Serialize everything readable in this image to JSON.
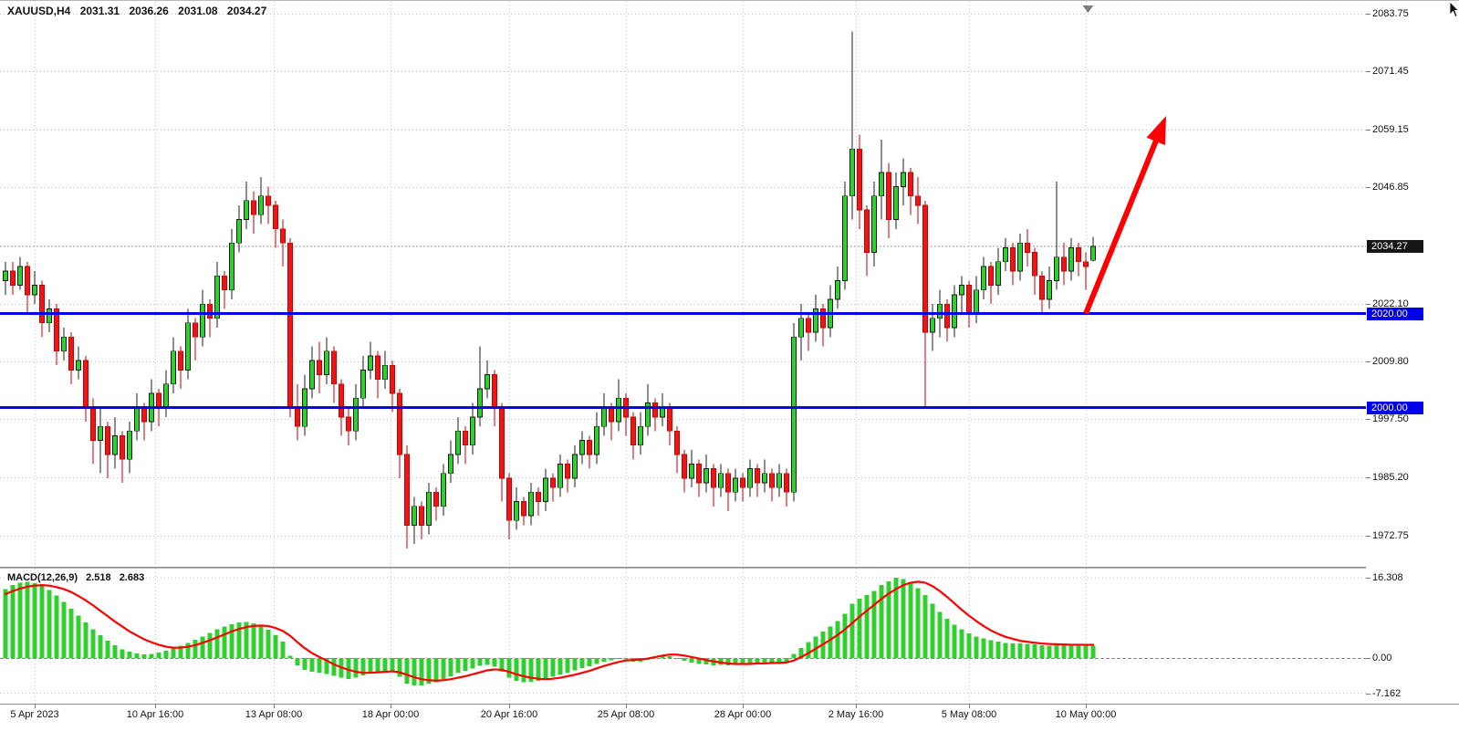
{
  "header": {
    "symbol": "XAUUSD,H4",
    "open": "2031.31",
    "high": "2036.26",
    "low": "2031.08",
    "close": "2034.27"
  },
  "chart_data": {
    "type": "candlestick",
    "symbol": "XAUUSD",
    "timeframe": "H4",
    "title": "XAUUSD,H4 gold 4-hour chart with MACD and support lines",
    "price_axis": {
      "ylim": [
        1972.75,
        2083.75
      ],
      "current_price": 2034.27,
      "current_label": "2034.27",
      "grid_extra": [
        2034.55
      ],
      "labels": [
        {
          "text": "2083.75",
          "price": 2083.75
        },
        {
          "text": "2071.45",
          "price": 2071.45
        },
        {
          "text": "2059.15",
          "price": 2059.15
        },
        {
          "text": "2046.85",
          "price": 2046.85
        },
        {
          "text": "2022.10",
          "price": 2022.1
        },
        {
          "text": "2009.80",
          "price": 2009.8
        },
        {
          "text": "1997.50",
          "price": 1997.5
        },
        {
          "text": "1985.20",
          "price": 1985.2
        },
        {
          "text": "1972.75",
          "price": 1972.75
        }
      ]
    },
    "time_axis": {
      "labels": [
        {
          "text": "5 Apr 2023",
          "index": 4
        },
        {
          "text": "10 Apr 16:00",
          "index": 20.5
        },
        {
          "text": "13 Apr 08:00",
          "index": 36.75
        },
        {
          "text": "18 Apr 00:00",
          "index": 52.75
        },
        {
          "text": "20 Apr 16:00",
          "index": 69
        },
        {
          "text": "25 Apr 08:00",
          "index": 85
        },
        {
          "text": "28 Apr 00:00",
          "index": 101
        },
        {
          "text": "2 May 16:00",
          "index": 116.5
        },
        {
          "text": "5 May 08:00",
          "index": 132
        },
        {
          "text": "10 May 00:00",
          "index": 148
        }
      ]
    },
    "hlines": [
      {
        "price": 2020.0,
        "label": "2020.00",
        "color": "#0000E8"
      },
      {
        "price": 2000.0,
        "label": "2000.00",
        "color": "#0000E8"
      }
    ],
    "arrow": {
      "from": {
        "index": 148,
        "price": 2020
      },
      "to": {
        "index": 159,
        "price": 2062
      },
      "color": "#FF0000"
    },
    "shift_marker_index": 148.3,
    "candles": [
      [
        2027,
        2031,
        2024,
        2029
      ],
      [
        2029,
        2031,
        2024,
        2026
      ],
      [
        2026,
        2032,
        2025,
        2030
      ],
      [
        2030,
        2031,
        2020,
        2024
      ],
      [
        2024,
        2029,
        2022,
        2026
      ],
      [
        2026,
        2027,
        2015,
        2018
      ],
      [
        2018,
        2023,
        2016,
        2021
      ],
      [
        2021,
        2022,
        2009,
        2012
      ],
      [
        2012,
        2017,
        2010,
        2015
      ],
      [
        2015,
        2016,
        2005,
        2008
      ],
      [
        2008,
        2013,
        2006,
        2010
      ],
      [
        2010,
        2011,
        1997,
        2000
      ],
      [
        2000,
        2002,
        1988,
        1993
      ],
      [
        1993,
        2000,
        1986,
        1996
      ],
      [
        1996,
        1997,
        1985,
        1990
      ],
      [
        1990,
        1998,
        1987,
        1994
      ],
      [
        1994,
        1995,
        1984,
        1989
      ],
      [
        1989,
        1997,
        1986,
        1995
      ],
      [
        1995,
        2003,
        1993,
        2000
      ],
      [
        2000,
        2001,
        1993,
        1997
      ],
      [
        1997,
        2006,
        1995,
        2003
      ],
      [
        2003,
        2004,
        1996,
        2000
      ],
      [
        2000,
        2008,
        1998,
        2005
      ],
      [
        2005,
        2015,
        2003,
        2012
      ],
      [
        2012,
        2013,
        2004,
        2008
      ],
      [
        2008,
        2021,
        2006,
        2018
      ],
      [
        2018,
        2019,
        2010,
        2015
      ],
      [
        2015,
        2025,
        2013,
        2022
      ],
      [
        2022,
        2023,
        2015,
        2019
      ],
      [
        2019,
        2031,
        2017,
        2028
      ],
      [
        2028,
        2029,
        2021,
        2025
      ],
      [
        2025,
        2038,
        2023,
        2035
      ],
      [
        2035,
        2043,
        2033,
        2040
      ],
      [
        2040,
        2048,
        2038,
        2044
      ],
      [
        2044,
        2046,
        2037,
        2041
      ],
      [
        2041,
        2049,
        2039,
        2045
      ],
      [
        2045,
        2047,
        2039,
        2043
      ],
      [
        2043,
        2044,
        2034,
        2038
      ],
      [
        2038,
        2040,
        2030,
        2035
      ],
      [
        2035,
        2036,
        1998,
        2000
      ],
      [
        2000,
        2005,
        1993,
        1996
      ],
      [
        1996,
        2007,
        1994,
        2004
      ],
      [
        2004,
        2013,
        2002,
        2010
      ],
      [
        2010,
        2014,
        2003,
        2007
      ],
      [
        2007,
        2015,
        2005,
        2012
      ],
      [
        2012,
        2013,
        2001,
        2005
      ],
      [
        2005,
        2006,
        1994,
        1998
      ],
      [
        1998,
        2000,
        1992,
        1995
      ],
      [
        1995,
        2005,
        1993,
        2002
      ],
      [
        2002,
        2011,
        2000,
        2008
      ],
      [
        2008,
        2014,
        2006,
        2011
      ],
      [
        2011,
        2012,
        2002,
        2006
      ],
      [
        2006,
        2012,
        2004,
        2009
      ],
      [
        2009,
        2010,
        1999,
        2003
      ],
      [
        2003,
        2004,
        1985,
        1990
      ],
      [
        1990,
        1992,
        1970,
        1975
      ],
      [
        1975,
        1981,
        1971,
        1979
      ],
      [
        1979,
        1980,
        1972,
        1975
      ],
      [
        1975,
        1984,
        1973,
        1982
      ],
      [
        1982,
        1983,
        1976,
        1979
      ],
      [
        1979,
        1988,
        1977,
        1986
      ],
      [
        1986,
        1993,
        1984,
        1990
      ],
      [
        1990,
        1998,
        1988,
        1995
      ],
      [
        1995,
        1996,
        1988,
        1992
      ],
      [
        1992,
        2001,
        1990,
        1998
      ],
      [
        1998,
        2013,
        1996,
        2004
      ],
      [
        2004,
        2010,
        2002,
        2007
      ],
      [
        2007,
        2008,
        1996,
        2000
      ],
      [
        2000,
        2001,
        1980,
        1985
      ],
      [
        1985,
        1986,
        1972,
        1976
      ],
      [
        1976,
        1983,
        1974,
        1980
      ],
      [
        1980,
        1981,
        1975,
        1977
      ],
      [
        1977,
        1984,
        1975,
        1982
      ],
      [
        1982,
        1983,
        1977,
        1980
      ],
      [
        1980,
        1987,
        1978,
        1985
      ],
      [
        1985,
        1986,
        1980,
        1983
      ],
      [
        1983,
        1990,
        1981,
        1988
      ],
      [
        1988,
        1989,
        1982,
        1985
      ],
      [
        1985,
        1992,
        1983,
        1990
      ],
      [
        1990,
        1995,
        1988,
        1993
      ],
      [
        1993,
        1994,
        1987,
        1990
      ],
      [
        1990,
        1999,
        1988,
        1996
      ],
      [
        1996,
        2003,
        1994,
        2000
      ],
      [
        2000,
        2001,
        1993,
        1997
      ],
      [
        1997,
        2006,
        1995,
        2002
      ],
      [
        2002,
        2003,
        1994,
        1998
      ],
      [
        1998,
        1999,
        1989,
        1992
      ],
      [
        1992,
        1999,
        1990,
        1996
      ],
      [
        1996,
        2005,
        1994,
        2001
      ],
      [
        2001,
        2002,
        1995,
        1998
      ],
      [
        1998,
        2003,
        1996,
        2000
      ],
      [
        2000,
        2001,
        1992,
        1995
      ],
      [
        1995,
        1996,
        1986,
        1990
      ],
      [
        1990,
        1991,
        1982,
        1985
      ],
      [
        1985,
        1991,
        1983,
        1988
      ],
      [
        1988,
        1989,
        1981,
        1984
      ],
      [
        1984,
        1990,
        1982,
        1987
      ],
      [
        1987,
        1988,
        1979,
        1983
      ],
      [
        1983,
        1988,
        1981,
        1986
      ],
      [
        1986,
        1987,
        1978,
        1982
      ],
      [
        1982,
        1987,
        1980,
        1985
      ],
      [
        1985,
        1986,
        1980,
        1983
      ],
      [
        1983,
        1989,
        1981,
        1987
      ],
      [
        1987,
        1988,
        1981,
        1984
      ],
      [
        1984,
        1989,
        1982,
        1986
      ],
      [
        1986,
        1987,
        1980,
        1983
      ],
      [
        1983,
        1988,
        1981,
        1986
      ],
      [
        1986,
        1987,
        1979,
        1982
      ],
      [
        1982,
        2018,
        1980,
        2015
      ],
      [
        2015,
        2022,
        2010,
        2019
      ],
      [
        2019,
        2020,
        2012,
        2016
      ],
      [
        2016,
        2024,
        2014,
        2021
      ],
      [
        2021,
        2022,
        2013,
        2017
      ],
      [
        2017,
        2026,
        2015,
        2023
      ],
      [
        2023,
        2030,
        2021,
        2027
      ],
      [
        2027,
        2048,
        2025,
        2045
      ],
      [
        2045,
        2080,
        2040,
        2055
      ],
      [
        2055,
        2058,
        2038,
        2042
      ],
      [
        2042,
        2043,
        2028,
        2033
      ],
      [
        2033,
        2048,
        2030,
        2045
      ],
      [
        2045,
        2057,
        2040,
        2050
      ],
      [
        2050,
        2052,
        2036,
        2040
      ],
      [
        2040,
        2050,
        2038,
        2047
      ],
      [
        2047,
        2053,
        2043,
        2050
      ],
      [
        2050,
        2051,
        2041,
        2045
      ],
      [
        2045,
        2049,
        2039,
        2043
      ],
      [
        2043,
        2044,
        2000,
        2016
      ],
      [
        2016,
        2022,
        2012,
        2019
      ],
      [
        2019,
        2025,
        2015,
        2022
      ],
      [
        2022,
        2023,
        2014,
        2017
      ],
      [
        2017,
        2026,
        2015,
        2024
      ],
      [
        2024,
        2028,
        2020,
        2026
      ],
      [
        2026,
        2027,
        2017,
        2020
      ],
      [
        2020,
        2028,
        2018,
        2025
      ],
      [
        2025,
        2032,
        2023,
        2030
      ],
      [
        2030,
        2031,
        2022,
        2026
      ],
      [
        2026,
        2034,
        2024,
        2031
      ],
      [
        2031,
        2036,
        2029,
        2034
      ],
      [
        2034,
        2035,
        2026,
        2029
      ],
      [
        2029,
        2037,
        2027,
        2035
      ],
      [
        2035,
        2038,
        2030,
        2033
      ],
      [
        2033,
        2034,
        2024,
        2028
      ],
      [
        2028,
        2029,
        2020,
        2023
      ],
      [
        2023,
        2030,
        2021,
        2027
      ],
      [
        2027,
        2048,
        2025,
        2032
      ],
      [
        2032,
        2035,
        2026,
        2029
      ],
      [
        2029,
        2036,
        2027,
        2034
      ],
      [
        2034,
        2035,
        2028,
        2031
      ],
      [
        2031,
        2033,
        2025,
        2030
      ],
      [
        2031.31,
        2036.26,
        2031.08,
        2034.27
      ]
    ],
    "macd": {
      "label": "MACD(12,26,9)",
      "value_main": "2.518",
      "value_signal": "2.683",
      "ylim": [
        -7.162,
        16.308
      ],
      "scale_labels": [
        {
          "text": "16.308",
          "value": 16.308
        },
        {
          "text": "0.00",
          "value": 0
        },
        {
          "text": "-7.162",
          "value": -7.162
        }
      ],
      "hist": [
        14.0,
        14.8,
        15.3,
        15.5,
        15.2,
        14.6,
        13.8,
        12.7,
        11.4,
        10.0,
        8.6,
        7.2,
        5.8,
        4.6,
        3.5,
        2.6,
        1.8,
        1.3,
        0.9,
        0.7,
        0.8,
        1.1,
        1.5,
        2.0,
        2.5,
        3.1,
        3.7,
        4.4,
        5.1,
        5.8,
        6.4,
        6.9,
        7.2,
        7.3,
        7.0,
        6.5,
        5.7,
        4.6,
        3.3,
        0.5,
        -1.5,
        -2.4,
        -2.8,
        -3.0,
        -3.2,
        -3.6,
        -4.0,
        -4.3,
        -4.0,
        -3.5,
        -3.0,
        -2.8,
        -2.6,
        -2.8,
        -3.8,
        -5.2,
        -5.6,
        -5.6,
        -5.2,
        -4.9,
        -4.3,
        -3.7,
        -3.0,
        -2.6,
        -2.1,
        -1.6,
        -1.4,
        -1.8,
        -2.8,
        -4.0,
        -4.6,
        -4.9,
        -4.8,
        -4.6,
        -4.2,
        -3.8,
        -3.3,
        -3.0,
        -2.5,
        -2.0,
        -1.7,
        -1.2,
        -0.7,
        -0.5,
        -0.2,
        -0.3,
        -0.7,
        -0.7,
        -0.4,
        0.3,
        0.6,
        0.4,
        -0.1,
        -0.6,
        -0.9,
        -1.2,
        -1.3,
        -1.5,
        -1.4,
        -1.5,
        -1.4,
        -1.3,
        -1.1,
        -1.0,
        -0.9,
        -0.9,
        -0.8,
        -0.7,
        0.8,
        2.0,
        3.2,
        4.4,
        5.4,
        6.4,
        7.5,
        9.0,
        11.0,
        12.0,
        12.8,
        13.6,
        14.8,
        15.6,
        16.3,
        16.0,
        15.3,
        14.2,
        12.8,
        11.0,
        9.4,
        8.0,
        6.8,
        5.8,
        5.0,
        4.4,
        4.0,
        3.6,
        3.3,
        3.1,
        3.0,
        3.0,
        2.9,
        2.8,
        2.6,
        2.5,
        2.7,
        2.6,
        2.55,
        2.5,
        2.5,
        2.518
      ],
      "signal": [
        13.0,
        13.6,
        14.1,
        14.5,
        14.7,
        14.8,
        14.7,
        14.4,
        14.0,
        13.4,
        12.6,
        11.7,
        10.7,
        9.6,
        8.5,
        7.4,
        6.4,
        5.4,
        4.6,
        3.8,
        3.2,
        2.7,
        2.3,
        2.1,
        2.1,
        2.3,
        2.6,
        3.1,
        3.6,
        4.2,
        4.8,
        5.4,
        5.9,
        6.3,
        6.5,
        6.6,
        6.5,
        6.1,
        5.5,
        4.5,
        3.2,
        2.0,
        1.0,
        0.2,
        -0.5,
        -1.3,
        -1.9,
        -2.4,
        -2.8,
        -3.0,
        -3.0,
        -2.9,
        -2.8,
        -2.7,
        -2.9,
        -3.4,
        -3.9,
        -4.3,
        -4.5,
        -4.6,
        -4.5,
        -4.3,
        -4.0,
        -3.7,
        -3.3,
        -2.9,
        -2.5,
        -2.3,
        -2.4,
        -2.8,
        -3.3,
        -3.7,
        -4.0,
        -4.2,
        -4.3,
        -4.2,
        -4.0,
        -3.7,
        -3.4,
        -3.0,
        -2.6,
        -2.1,
        -1.6,
        -1.2,
        -0.8,
        -0.5,
        -0.4,
        -0.3,
        -0.1,
        0.2,
        0.5,
        0.7,
        0.7,
        0.5,
        0.2,
        -0.1,
        -0.4,
        -0.7,
        -0.9,
        -1.1,
        -1.2,
        -1.2,
        -1.2,
        -1.1,
        -1.1,
        -1.0,
        -1.0,
        -0.9,
        -0.5,
        0.2,
        1.0,
        1.9,
        2.8,
        3.7,
        4.7,
        5.8,
        7.1,
        8.4,
        9.6,
        10.8,
        12.0,
        13.1,
        14.0,
        14.8,
        15.3,
        15.5,
        15.3,
        14.6,
        13.6,
        12.4,
        11.1,
        9.8,
        8.6,
        7.5,
        6.5,
        5.6,
        4.9,
        4.3,
        3.9,
        3.5,
        3.3,
        3.1,
        2.95,
        2.85,
        2.8,
        2.75,
        2.7,
        2.7,
        2.69,
        2.683
      ]
    },
    "colors": {
      "grid": "#c3c3c3",
      "bid_line": "#a8a8a8",
      "bull": "#2FCF2F",
      "bull_stroke": "#1c1c1c",
      "bear": "#F01414",
      "bear_stroke": "#C40000",
      "hline": "#0000E8",
      "arrow": "#FF0000",
      "histogram": "#2FCF2F",
      "signal_line": "#FF0000",
      "current_tag_bg": "#161616",
      "axis_text": "#111111"
    }
  }
}
